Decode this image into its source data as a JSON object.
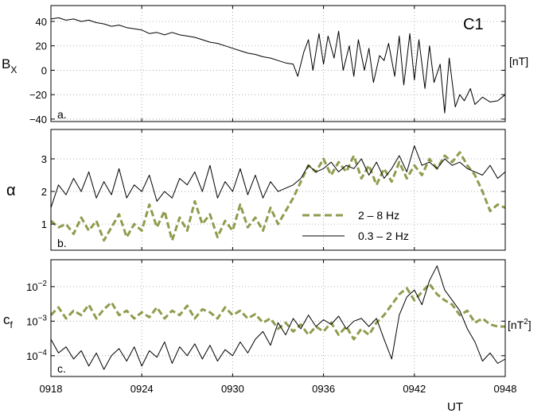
{
  "chart_data": {
    "time": {
      "ticks": [
        "0918",
        "0924",
        "0930",
        "0936",
        "0942",
        "0948"
      ],
      "tick_minutes": [
        0,
        6,
        12,
        18,
        24,
        30
      ],
      "xlabel": "UT",
      "xlim_minutes": [
        0,
        30
      ]
    },
    "panels": [
      {
        "id": "a",
        "type": "line",
        "panel_label": "a.",
        "ylabel": "B",
        "ylabel_sub": "X",
        "unit": "[nT]",
        "spacecraft_label": "C1",
        "ylim": [
          -42,
          53
        ],
        "yticks": [
          40,
          20,
          0,
          -20,
          -40
        ],
        "ytick_labels": [
          "40",
          "20",
          "0",
          "−20",
          "−40"
        ],
        "grid": true,
        "series": [
          {
            "color": "#000000",
            "x": [
              0,
              0.5,
              1,
              1.5,
              2,
              2.5,
              3,
              3.5,
              4,
              4.5,
              5,
              5.5,
              6,
              6.5,
              7,
              7.5,
              8,
              8.5,
              9,
              9.5,
              10,
              10.5,
              11,
              11.5,
              12,
              12.5,
              13,
              13.5,
              14,
              14.5,
              15,
              15.5,
              16,
              16.3,
              16.7,
              17,
              17.3,
              17.7,
              18,
              18.3,
              18.7,
              19,
              19.3,
              19.7,
              20,
              20.3,
              20.7,
              21,
              21.3,
              21.7,
              22,
              22.3,
              22.7,
              23,
              23.3,
              23.7,
              24,
              24.3,
              24.7,
              25,
              25.3,
              25.7,
              26,
              26.3,
              26.7,
              27,
              27.3,
              27.7,
              28,
              28.5,
              29,
              29.5,
              30
            ],
            "y": [
              42,
              43,
              41,
              42,
              40,
              41,
              39,
              38,
              36,
              37,
              35,
              34,
              33,
              30,
              31,
              29,
              31,
              29,
              28,
              27,
              25,
              23,
              22,
              20,
              18,
              16,
              14,
              13,
              11,
              10,
              8,
              6,
              5,
              -5,
              15,
              25,
              0,
              30,
              5,
              28,
              10,
              32,
              0,
              20,
              -5,
              25,
              0,
              18,
              -10,
              12,
              8,
              22,
              -5,
              28,
              -12,
              30,
              -8,
              25,
              -15,
              20,
              -10,
              5,
              -35,
              10,
              -30,
              -20,
              -25,
              -15,
              -28,
              -22,
              -26,
              -25,
              -20
            ]
          }
        ]
      },
      {
        "id": "b",
        "type": "line",
        "panel_label": "b.",
        "ylabel": "α",
        "ylim": [
          0.2,
          3.9
        ],
        "yticks": [
          3,
          2,
          1
        ],
        "ytick_labels": [
          "3",
          "2",
          "1"
        ],
        "grid": true,
        "legend": {
          "position": "inside-bottom-right"
        },
        "series": [
          {
            "name": "2 – 8 Hz",
            "color": "#8f9c4d",
            "style": "dashed",
            "x": [
              0,
              0.5,
              1,
              1.5,
              2,
              2.5,
              3,
              3.5,
              4,
              4.5,
              5,
              5.5,
              6,
              6.5,
              7,
              7.5,
              8,
              8.5,
              9,
              9.5,
              10,
              10.5,
              11,
              11.5,
              12,
              12.5,
              13,
              13.5,
              14,
              14.5,
              15,
              15.5,
              16,
              16.5,
              17,
              17.5,
              18,
              18.5,
              19,
              19.5,
              20,
              20.5,
              21,
              21.5,
              22,
              22.5,
              23,
              23.5,
              24,
              24.5,
              25,
              25.5,
              26,
              26.5,
              27,
              27.5,
              28,
              28.5,
              29,
              29.5,
              30
            ],
            "y": [
              1.1,
              0.9,
              1.0,
              0.7,
              1.2,
              0.8,
              1.1,
              0.5,
              0.9,
              1.3,
              0.6,
              1.0,
              0.8,
              1.6,
              0.9,
              1.4,
              0.5,
              1.2,
              0.8,
              1.7,
              1.0,
              1.3,
              0.6,
              1.1,
              0.8,
              1.6,
              0.9,
              1.2,
              0.8,
              1.5,
              1.0,
              1.4,
              1.8,
              2.3,
              2.8,
              2.6,
              3.0,
              2.5,
              2.9,
              2.6,
              3.1,
              2.4,
              2.8,
              2.2,
              2.7,
              2.3,
              2.9,
              2.4,
              2.8,
              2.5,
              3.0,
              2.7,
              3.1,
              2.9,
              3.2,
              2.8,
              2.5,
              2.0,
              1.4,
              1.6,
              1.5
            ]
          },
          {
            "name": "0.3 – 2 Hz",
            "color": "#000000",
            "style": "solid",
            "x": [
              0,
              0.5,
              1,
              1.5,
              2,
              2.5,
              3,
              3.5,
              4,
              4.5,
              5,
              5.5,
              6,
              6.5,
              7,
              7.5,
              8,
              8.5,
              9,
              9.5,
              10,
              10.5,
              11,
              11.5,
              12,
              12.5,
              13,
              13.5,
              14,
              14.5,
              15,
              15.5,
              16,
              16.5,
              17,
              17.5,
              18,
              18.5,
              19,
              19.5,
              20,
              20.5,
              21,
              21.5,
              22,
              22.5,
              23,
              23.5,
              24,
              24.5,
              25,
              25.5,
              26,
              26.5,
              27,
              27.5,
              28,
              28.5,
              29,
              29.5,
              30
            ],
            "y": [
              1.5,
              2.2,
              1.9,
              2.4,
              2.0,
              2.6,
              1.8,
              2.3,
              1.9,
              2.7,
              1.8,
              2.2,
              2.0,
              2.5,
              1.7,
              2.0,
              1.8,
              2.4,
              2.2,
              2.6,
              2.0,
              2.8,
              1.8,
              2.3,
              2.0,
              2.7,
              1.9,
              2.5,
              1.8,
              2.3,
              2.0,
              2.1,
              2.2,
              2.4,
              2.8,
              2.6,
              2.7,
              2.9,
              2.6,
              2.8,
              2.7,
              3.0,
              2.5,
              2.9,
              2.4,
              2.7,
              3.1,
              2.6,
              3.4,
              2.8,
              2.9,
              2.7,
              3.0,
              2.8,
              2.9,
              2.7,
              2.6,
              2.5,
              2.8,
              2.4,
              2.6
            ]
          }
        ]
      },
      {
        "id": "c",
        "type": "line",
        "scale": "log",
        "panel_label": "c.",
        "ylabel": "c",
        "ylabel_sub": "f",
        "unit": "[nT",
        "unit_sup": "2",
        "unit_close": "]",
        "ylim": [
          2.5e-05,
          0.06
        ],
        "yticks": [
          0.01,
          0.001,
          0.0001
        ],
        "ytick_labels": [
          {
            "base": "10",
            "exp": "−2"
          },
          {
            "base": "10",
            "exp": "−3"
          },
          {
            "base": "10",
            "exp": "−4"
          }
        ],
        "grid": true,
        "series": [
          {
            "name": "2 – 8 Hz",
            "color": "#8f9c4d",
            "style": "dashed",
            "x": [
              0,
              0.5,
              1,
              1.5,
              2,
              2.5,
              3,
              3.5,
              4,
              4.5,
              5,
              5.5,
              6,
              6.5,
              7,
              7.5,
              8,
              8.5,
              9,
              9.5,
              10,
              10.5,
              11,
              11.5,
              12,
              12.5,
              13,
              13.5,
              14,
              14.5,
              15,
              15.5,
              16,
              16.5,
              17,
              17.5,
              18,
              18.5,
              19,
              19.5,
              20,
              20.5,
              21,
              21.5,
              22,
              22.5,
              23,
              23.5,
              24,
              24.5,
              25,
              25.5,
              26,
              26.5,
              27,
              27.5,
              28,
              28.5,
              29,
              29.5,
              30
            ],
            "y": [
              0.0015,
              0.0025,
              0.0012,
              0.002,
              0.0015,
              0.003,
              0.0012,
              0.0022,
              0.0035,
              0.0015,
              0.002,
              0.0012,
              0.0018,
              0.0013,
              0.0025,
              0.0012,
              0.002,
              0.0015,
              0.0028,
              0.0012,
              0.0022,
              0.0018,
              0.0012,
              0.0025,
              0.0015,
              0.002,
              0.0012,
              0.0016,
              0.0009,
              0.0012,
              0.0006,
              0.0009,
              0.0005,
              0.0008,
              0.0004,
              0.0007,
              0.0005,
              0.0009,
              0.0004,
              0.0007,
              0.0003,
              0.0006,
              0.0004,
              0.0009,
              0.0015,
              0.003,
              0.006,
              0.009,
              0.004,
              0.007,
              0.012,
              0.006,
              0.004,
              0.003,
              0.0015,
              0.002,
              0.0009,
              0.0012,
              0.0008,
              0.0007,
              0.0007
            ]
          },
          {
            "name": "0.3 – 2 Hz",
            "color": "#000000",
            "style": "solid",
            "x": [
              0,
              0.5,
              1,
              1.5,
              2,
              2.5,
              3,
              3.5,
              4,
              4.5,
              5,
              5.5,
              6,
              6.5,
              7,
              7.5,
              8,
              8.5,
              9,
              9.5,
              10,
              10.5,
              11,
              11.5,
              12,
              12.5,
              13,
              13.5,
              14,
              14.5,
              15,
              15.5,
              16,
              16.5,
              17,
              17.5,
              18,
              18.5,
              19,
              19.5,
              20,
              20.5,
              21,
              21.5,
              22,
              22.5,
              23,
              23.5,
              24,
              24.5,
              25,
              25.5,
              26,
              26.5,
              27,
              27.5,
              28,
              28.5,
              29,
              29.5,
              30
            ],
            "y": [
              0.0003,
              0.00012,
              0.00018,
              8e-05,
              0.00014,
              5e-05,
              0.00012,
              4e-05,
              0.0001,
              0.00016,
              7e-05,
              0.00018,
              5e-05,
              0.00014,
              9e-05,
              0.00025,
              6e-05,
              0.00018,
              0.0001,
              0.00022,
              8e-05,
              0.0002,
              7e-05,
              0.00015,
              0.0001,
              0.00025,
              0.00012,
              0.0003,
              0.0005,
              0.0002,
              0.0009,
              0.0004,
              0.0012,
              0.0006,
              0.0015,
              0.0007,
              0.0011,
              0.0008,
              0.0014,
              0.0006,
              0.001,
              0.0012,
              0.0007,
              0.0012,
              0.0003,
              8e-05,
              0.0015,
              0.005,
              0.008,
              0.003,
              0.015,
              0.04,
              0.008,
              0.004,
              0.002,
              0.0006,
              0.00025,
              7e-05,
              0.00012,
              6e-05,
              8e-05
            ]
          }
        ]
      }
    ]
  }
}
